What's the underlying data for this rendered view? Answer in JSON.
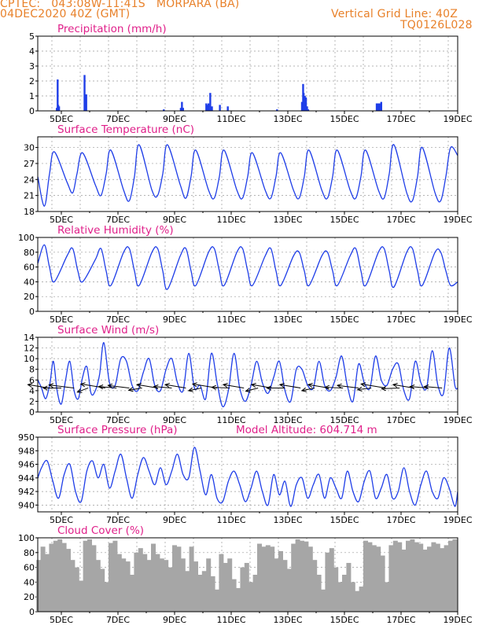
{
  "header": {
    "line1": "CPTEC:   043:08W-11:41S   MORPARA (BA)",
    "line2": "04DEC2020 40Z (GMT)",
    "grid_note": "Vertical Grid Line: 40Z",
    "code": "TQ0126L028"
  },
  "colors": {
    "header": "#e8812a",
    "title": "#e0208a",
    "series": "#1f3ee8",
    "cloud": "#a6a6a6",
    "arrow": "#000000",
    "grid": "#9a9a9a"
  },
  "x_axis": {
    "start_day": 4.1667,
    "end_day": 19.0,
    "tick_labels": [
      "5DEC",
      "7DEC",
      "9DEC",
      "11DEC",
      "13DEC",
      "15DEC",
      "17DEC",
      "19DEC"
    ],
    "tick_days": [
      5,
      7,
      9,
      11,
      13,
      15,
      17,
      19
    ],
    "gridline": "vertical at 40Z (16:00) each day"
  },
  "chart_data": [
    {
      "type": "bar",
      "title": "Precipitation (mm/h)",
      "ylim": [
        0,
        5
      ],
      "yticks": [
        0,
        1,
        2,
        3,
        4,
        5
      ],
      "series": [
        {
          "x": [
            4.84,
            4.87,
            4.89,
            4.92,
            5.82,
            5.85,
            5.88,
            8.62,
            9.22,
            9.26,
            9.3,
            10.12,
            10.16,
            10.2,
            10.26,
            10.32,
            10.6,
            10.88,
            12.62,
            13.5,
            13.54,
            13.56,
            13.6,
            13.64,
            13.68,
            13.72,
            16.14,
            16.18,
            16.22,
            16.26,
            16.3
          ],
          "values": [
            0.2,
            2.1,
            0.4,
            0.3,
            2.4,
            1.1,
            1.1,
            0.1,
            0.2,
            0.6,
            0.2,
            0.5,
            0.4,
            0.5,
            1.2,
            0.3,
            0.4,
            0.3,
            0.1,
            0.6,
            1.8,
            1.2,
            1.0,
            0.9,
            0.3,
            0.1,
            0.5,
            0.5,
            0.5,
            0.5,
            0.6
          ]
        }
      ]
    },
    {
      "type": "line",
      "title": "Surface Temperature (nC)",
      "ylim": [
        18,
        32
      ],
      "yticks": [
        18,
        21,
        24,
        27,
        30
      ],
      "series": [
        {
          "x": [
            4.17,
            4.4,
            4.58,
            4.75,
            5.2,
            5.4,
            5.55,
            5.75,
            6.2,
            6.4,
            6.58,
            6.75,
            7.2,
            7.4,
            7.58,
            7.75,
            8.2,
            8.4,
            8.58,
            8.75,
            9.2,
            9.4,
            9.58,
            9.75,
            10.2,
            10.4,
            10.58,
            10.75,
            11.2,
            11.4,
            11.58,
            11.75,
            12.2,
            12.4,
            12.58,
            12.75,
            13.2,
            13.4,
            13.58,
            13.75,
            14.2,
            14.4,
            14.58,
            14.75,
            15.2,
            15.4,
            15.58,
            15.75,
            16.2,
            16.4,
            16.58,
            16.75,
            17.2,
            17.4,
            17.58,
            17.75,
            18.2,
            18.4,
            18.58,
            18.75,
            19.0
          ],
          "values": [
            24.5,
            19.0,
            25.0,
            29.2,
            23.5,
            21.5,
            25.0,
            29.0,
            23.0,
            21.0,
            25.0,
            29.5,
            22.0,
            20.0,
            24.5,
            30.5,
            22.0,
            21.0,
            25.0,
            30.5,
            23.0,
            20.5,
            24.5,
            29.5,
            22.0,
            20.5,
            24.5,
            29.5,
            22.0,
            20.5,
            24.5,
            29.0,
            22.0,
            20.5,
            24.5,
            29.0,
            22.0,
            20.5,
            24.5,
            29.5,
            22.0,
            20.5,
            24.5,
            29.5,
            22.0,
            20.5,
            24.5,
            29.5,
            22.0,
            20.5,
            25.0,
            30.5,
            21.5,
            20.0,
            24.5,
            30.0,
            21.5,
            20.0,
            24.5,
            30.0,
            28.5
          ]
        }
      ]
    },
    {
      "type": "line",
      "title": "Relative Humidity (%)",
      "ylim": [
        0,
        100
      ],
      "yticks": [
        0,
        20,
        40,
        60,
        80,
        100
      ],
      "series": [
        {
          "x": [
            4.17,
            4.4,
            4.58,
            4.75,
            5.2,
            5.4,
            5.58,
            5.75,
            6.2,
            6.4,
            6.58,
            6.75,
            7.2,
            7.4,
            7.58,
            7.75,
            8.2,
            8.4,
            8.58,
            8.75,
            9.2,
            9.4,
            9.58,
            9.75,
            10.2,
            10.4,
            10.58,
            10.75,
            11.2,
            11.4,
            11.58,
            11.75,
            12.2,
            12.4,
            12.58,
            12.75,
            13.2,
            13.4,
            13.58,
            13.75,
            14.2,
            14.4,
            14.58,
            14.75,
            15.2,
            15.4,
            15.58,
            15.75,
            16.2,
            16.4,
            16.58,
            16.75,
            17.2,
            17.4,
            17.58,
            17.75,
            18.2,
            18.4,
            18.58,
            18.75,
            19.0
          ],
          "values": [
            65,
            90,
            60,
            40,
            75,
            85,
            55,
            40,
            70,
            85,
            55,
            35,
            80,
            85,
            55,
            35,
            80,
            85,
            55,
            30,
            75,
            85,
            55,
            35,
            80,
            85,
            55,
            35,
            80,
            85,
            55,
            35,
            75,
            85,
            55,
            35,
            75,
            80,
            55,
            35,
            75,
            80,
            55,
            35,
            75,
            85,
            55,
            35,
            80,
            85,
            55,
            33,
            80,
            85,
            55,
            35,
            80,
            80,
            55,
            35,
            40
          ]
        }
      ]
    },
    {
      "type": "line",
      "title": "Surface Wind (m/s)",
      "ylim": [
        0,
        14
      ],
      "yticks": [
        0,
        2,
        4,
        6,
        8,
        10,
        12,
        14
      ],
      "series": [
        {
          "x": [
            4.17,
            4.3,
            4.45,
            4.6,
            4.72,
            4.85,
            5.0,
            5.15,
            5.3,
            5.45,
            5.6,
            5.75,
            5.9,
            6.05,
            6.2,
            6.35,
            6.5,
            6.7,
            6.9,
            7.1,
            7.3,
            7.5,
            7.7,
            7.9,
            8.1,
            8.3,
            8.5,
            8.7,
            8.9,
            9.1,
            9.3,
            9.5,
            9.7,
            9.9,
            10.1,
            10.3,
            10.5,
            10.7,
            10.9,
            11.1,
            11.3,
            11.5,
            11.7,
            11.9,
            12.1,
            12.3,
            12.5,
            12.7,
            12.9,
            13.1,
            13.3,
            13.5,
            13.7,
            13.9,
            14.1,
            14.3,
            14.5,
            14.7,
            14.9,
            15.1,
            15.3,
            15.5,
            15.7,
            15.9,
            16.1,
            16.3,
            16.5,
            16.7,
            16.9,
            17.1,
            17.3,
            17.5,
            17.7,
            17.9,
            18.1,
            18.3,
            18.5,
            18.7,
            18.9,
            19.0
          ],
          "values": [
            6.0,
            4.5,
            2.5,
            5.5,
            9.5,
            4.0,
            1.5,
            6.0,
            9.5,
            4.0,
            2.5,
            6.5,
            8.5,
            3.5,
            4.0,
            7.0,
            13.0,
            5.5,
            5.0,
            10.0,
            9.5,
            5.0,
            4.0,
            7.5,
            10.0,
            5.0,
            4.0,
            8.0,
            10.0,
            5.5,
            4.0,
            11.0,
            4.5,
            5.0,
            2.5,
            11.0,
            5.5,
            1.0,
            4.0,
            11.0,
            4.5,
            2.0,
            5.0,
            9.5,
            5.5,
            3.5,
            6.5,
            9.5,
            4.0,
            2.0,
            8.0,
            8.0,
            5.0,
            4.5,
            9.5,
            5.0,
            4.0,
            6.5,
            10.5,
            5.0,
            2.0,
            9.0,
            5.5,
            4.5,
            10.5,
            6.0,
            5.0,
            8.0,
            9.0,
            4.0,
            2.5,
            9.5,
            5.5,
            4.5,
            11.5,
            5.0,
            3.5,
            12.0,
            5.0,
            4.5
          ]
        }
      ],
      "arrows": {
        "x": [
          4.55,
          5.0,
          5.45,
          5.95,
          6.55,
          6.95,
          7.4,
          7.85,
          8.4,
          8.9,
          9.4,
          9.95,
          10.5,
          10.95,
          11.45,
          11.95,
          12.45,
          12.9,
          13.45,
          13.95,
          14.45,
          14.95,
          15.5,
          15.95,
          16.45,
          16.95,
          17.45,
          17.95,
          18.45
        ],
        "speed": [
          4,
          3,
          5,
          2,
          5,
          3,
          4,
          2,
          4,
          3,
          4,
          2,
          5,
          3,
          4,
          2,
          4,
          3,
          4,
          2,
          4,
          3,
          4,
          2,
          5,
          3,
          4,
          3,
          3
        ],
        "angle_deg": [
          200,
          180,
          195,
          140,
          200,
          190,
          195,
          160,
          200,
          190,
          200,
          155,
          200,
          185,
          200,
          150,
          200,
          180,
          200,
          155,
          200,
          185,
          195,
          165,
          200,
          175,
          200,
          190,
          190
        ]
      }
    },
    {
      "type": "line",
      "title": "Surface Pressure (hPa)",
      "annotation": "Model Altitude: 604.714 m",
      "ylim": [
        939,
        950
      ],
      "yticks": [
        940,
        942,
        944,
        946,
        948,
        950
      ],
      "series": [
        {
          "x": [
            4.17,
            4.3,
            4.5,
            4.7,
            4.9,
            5.1,
            5.3,
            5.5,
            5.7,
            5.9,
            6.1,
            6.3,
            6.5,
            6.7,
            6.9,
            7.1,
            7.3,
            7.5,
            7.7,
            7.9,
            8.1,
            8.3,
            8.5,
            8.7,
            8.9,
            9.1,
            9.3,
            9.5,
            9.7,
            9.9,
            10.1,
            10.3,
            10.5,
            10.7,
            10.9,
            11.1,
            11.3,
            11.5,
            11.7,
            11.9,
            12.1,
            12.3,
            12.5,
            12.7,
            12.9,
            13.1,
            13.3,
            13.5,
            13.7,
            13.9,
            14.1,
            14.3,
            14.5,
            14.7,
            14.9,
            15.1,
            15.3,
            15.5,
            15.7,
            15.9,
            16.1,
            16.3,
            16.5,
            16.7,
            16.9,
            17.1,
            17.3,
            17.5,
            17.7,
            17.9,
            18.1,
            18.3,
            18.5,
            18.7,
            18.9,
            19.0
          ],
          "values": [
            944.0,
            945.5,
            946.5,
            943.5,
            941.0,
            944.5,
            946.0,
            942.0,
            940.5,
            945.0,
            946.5,
            944.0,
            946.0,
            942.5,
            945.0,
            947.5,
            944.0,
            941.0,
            944.5,
            947.0,
            945.0,
            943.0,
            945.5,
            943.0,
            945.0,
            947.5,
            944.5,
            944.0,
            948.5,
            945.0,
            941.5,
            944.5,
            941.0,
            940.5,
            943.5,
            945.0,
            943.0,
            940.5,
            942.5,
            945.0,
            942.0,
            940.0,
            944.5,
            941.5,
            943.5,
            939.8,
            943.0,
            944.0,
            941.0,
            943.0,
            944.5,
            941.0,
            944.0,
            942.5,
            941.0,
            945.0,
            942.0,
            940.5,
            943.5,
            945.0,
            941.0,
            942.5,
            944.5,
            941.0,
            942.0,
            945.5,
            942.0,
            940.0,
            943.0,
            945.0,
            942.0,
            941.0,
            944.0,
            942.5,
            939.8,
            942.0
          ]
        }
      ]
    },
    {
      "type": "bar",
      "title": "Cloud Cover (%)",
      "ylim": [
        0,
        100
      ],
      "yticks": [
        0,
        20,
        40,
        60,
        80,
        100
      ],
      "series": [
        {
          "x": [
            4.2,
            4.35,
            4.5,
            4.65,
            4.8,
            4.95,
            5.1,
            5.25,
            5.4,
            5.55,
            5.7,
            5.85,
            6.0,
            6.15,
            6.3,
            6.45,
            6.6,
            6.75,
            6.9,
            7.05,
            7.2,
            7.35,
            7.5,
            7.65,
            7.8,
            7.95,
            8.1,
            8.25,
            8.4,
            8.55,
            8.7,
            8.85,
            9.0,
            9.15,
            9.3,
            9.45,
            9.6,
            9.75,
            9.9,
            10.05,
            10.2,
            10.35,
            10.5,
            10.65,
            10.8,
            10.95,
            11.1,
            11.25,
            11.4,
            11.55,
            11.7,
            11.85,
            12.0,
            12.15,
            12.3,
            12.45,
            12.6,
            12.75,
            12.9,
            13.05,
            13.2,
            13.35,
            13.5,
            13.65,
            13.8,
            13.95,
            14.1,
            14.25,
            14.4,
            14.55,
            14.7,
            14.85,
            15.0,
            15.15,
            15.3,
            15.45,
            15.6,
            15.75,
            15.9,
            16.05,
            16.2,
            16.35,
            16.5,
            16.65,
            16.8,
            16.95,
            17.1,
            17.25,
            17.4,
            17.55,
            17.7,
            17.85,
            18.0,
            18.15,
            18.3,
            18.45,
            18.6,
            18.75,
            18.9
          ],
          "values": [
            70,
            88,
            78,
            92,
            96,
            98,
            93,
            85,
            70,
            60,
            42,
            96,
            98,
            90,
            70,
            58,
            40,
            93,
            96,
            78,
            72,
            68,
            50,
            80,
            86,
            78,
            70,
            92,
            78,
            72,
            70,
            60,
            90,
            88,
            72,
            55,
            88,
            68,
            50,
            55,
            72,
            48,
            30,
            78,
            66,
            72,
            44,
            32,
            60,
            66,
            40,
            50,
            92,
            88,
            90,
            88,
            72,
            82,
            70,
            58,
            92,
            98,
            96,
            95,
            88,
            70,
            50,
            30,
            80,
            86,
            60,
            40,
            50,
            66,
            40,
            28,
            34,
            96,
            94,
            90,
            88,
            76,
            40,
            90,
            96,
            94,
            84,
            96,
            98,
            94,
            92,
            84,
            88,
            94,
            92,
            86,
            90,
            96,
            98
          ]
        }
      ]
    }
  ]
}
